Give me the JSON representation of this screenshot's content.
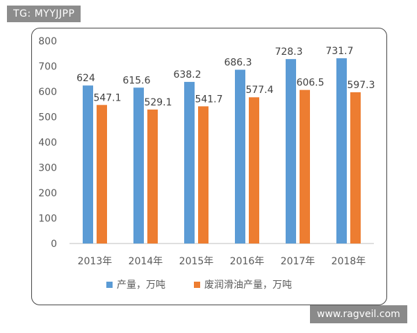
{
  "tag": "TG: MYYJJPP",
  "watermark": "www.ragveil.com",
  "colors": {
    "series1": "#5b9bd5",
    "series2": "#ed7d31"
  },
  "chart_data": {
    "type": "bar",
    "title": "",
    "xlabel": "",
    "ylabel": "",
    "categories": [
      "2013年",
      "2014年",
      "2015年",
      "2016年",
      "2017年",
      "2018年"
    ],
    "series": [
      {
        "name": "产量，万吨",
        "values": [
          624,
          615.6,
          638.2,
          686.3,
          728.3,
          731.7
        ]
      },
      {
        "name": "废润滑油产量，万吨",
        "values": [
          547.1,
          529.1,
          541.7,
          577.4,
          606.5,
          597.3
        ]
      }
    ],
    "data_labels": [
      [
        "624",
        "615.6",
        "638.2",
        "686.3",
        "728.3",
        "731.7"
      ],
      [
        "547.1",
        "529.1",
        "541.7",
        "577.4",
        "606.5",
        "597.3"
      ]
    ],
    "ylim": [
      0,
      800
    ],
    "yticks": [
      0,
      100,
      200,
      300,
      400,
      500,
      600,
      700,
      800
    ],
    "grid": false,
    "legend": "bottom"
  }
}
